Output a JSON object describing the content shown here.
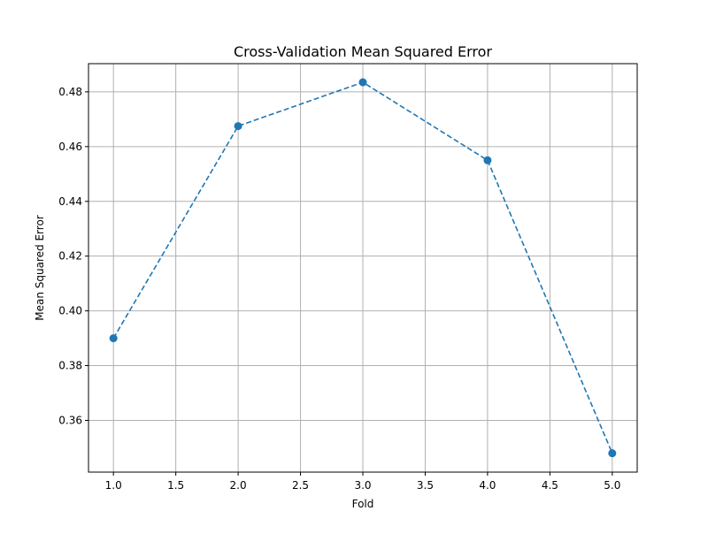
{
  "chart_data": {
    "type": "line",
    "title": "Cross-Validation Mean Squared Error",
    "xlabel": "Fold",
    "ylabel": "Mean Squared Error",
    "x": [
      1,
      2,
      3,
      4,
      5
    ],
    "series": [
      {
        "values": [
          0.39,
          0.4675,
          0.4835,
          0.455,
          0.348
        ],
        "color": "#1f77b4",
        "line_style": "dashed",
        "marker": "circle"
      }
    ],
    "xlim": [
      0.8,
      5.2
    ],
    "ylim": [
      0.3411,
      0.4903
    ],
    "x_ticks": [
      1.0,
      1.5,
      2.0,
      2.5,
      3.0,
      3.5,
      4.0,
      4.5,
      5.0
    ],
    "x_tick_labels": [
      "1.0",
      "1.5",
      "2.0",
      "2.5",
      "3.0",
      "3.5",
      "4.0",
      "4.5",
      "5.0"
    ],
    "y_ticks": [
      0.36,
      0.38,
      0.4,
      0.42,
      0.44,
      0.46,
      0.48
    ],
    "y_tick_labels": [
      "0.36",
      "0.38",
      "0.40",
      "0.42",
      "0.44",
      "0.46",
      "0.48"
    ],
    "grid": true,
    "legend": "none"
  }
}
